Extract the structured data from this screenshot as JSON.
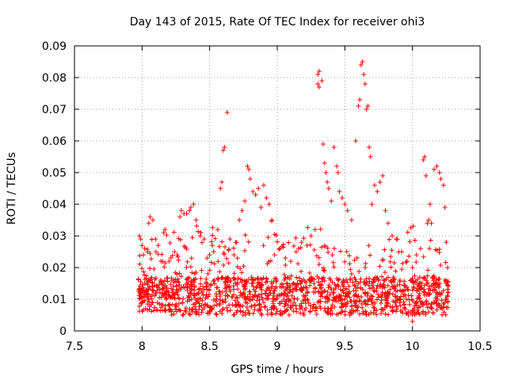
{
  "chart_data": {
    "type": "scatter",
    "title": "Day 143 of 2015, Rate Of TEC Index for receiver ohi3",
    "xlabel": "GPS time / hours",
    "ylabel": "ROTI / TECUs",
    "xlim": [
      7.5,
      10.5
    ],
    "ylim": [
      0,
      0.09
    ],
    "xticks": [
      "7.5",
      "8",
      "8.5",
      "9",
      "9.5",
      "10",
      "10.5"
    ],
    "yticks": [
      "0",
      "0.01",
      "0.02",
      "0.03",
      "0.04",
      "0.05",
      "0.06",
      "0.07",
      "0.08",
      "0.09"
    ],
    "grid": true,
    "marker": "+",
    "color": "#ff0000",
    "series": [
      {
        "name": "ROTI",
        "points": [
          [
            7.98,
            0.03
          ],
          [
            7.99,
            0.029
          ],
          [
            8.0,
            0.027
          ],
          [
            8.01,
            0.024
          ],
          [
            8.02,
            0.026
          ],
          [
            8.04,
            0.025
          ],
          [
            8.05,
            0.034
          ],
          [
            8.06,
            0.036
          ],
          [
            8.08,
            0.035
          ],
          [
            8.1,
            0.029
          ],
          [
            8.12,
            0.027
          ],
          [
            8.14,
            0.022
          ],
          [
            8.16,
            0.031
          ],
          [
            8.17,
            0.032
          ],
          [
            8.2,
            0.022
          ],
          [
            8.24,
            0.025
          ],
          [
            8.26,
            0.024
          ],
          [
            8.28,
            0.036
          ],
          [
            8.29,
            0.038
          ],
          [
            8.31,
            0.037
          ],
          [
            8.33,
            0.037
          ],
          [
            8.35,
            0.038
          ],
          [
            8.36,
            0.039
          ],
          [
            8.38,
            0.04
          ],
          [
            8.4,
            0.035
          ],
          [
            8.43,
            0.03
          ],
          [
            8.46,
            0.029
          ],
          [
            8.48,
            0.023
          ],
          [
            8.5,
            0.024
          ],
          [
            8.53,
            0.025
          ],
          [
            8.56,
            0.032
          ],
          [
            8.58,
            0.045
          ],
          [
            8.59,
            0.047
          ],
          [
            8.6,
            0.057
          ],
          [
            8.61,
            0.058
          ],
          [
            8.63,
            0.069
          ],
          [
            8.65,
            0.029
          ],
          [
            8.68,
            0.024
          ],
          [
            8.7,
            0.028
          ],
          [
            8.72,
            0.035
          ],
          [
            8.74,
            0.038
          ],
          [
            8.76,
            0.041
          ],
          [
            8.78,
            0.052
          ],
          [
            8.79,
            0.051
          ],
          [
            8.8,
            0.048
          ],
          [
            8.82,
            0.044
          ],
          [
            8.84,
            0.043
          ],
          [
            8.86,
            0.045
          ],
          [
            8.88,
            0.039
          ],
          [
            8.9,
            0.046
          ],
          [
            8.92,
            0.042
          ],
          [
            8.94,
            0.04
          ],
          [
            8.96,
            0.035
          ],
          [
            8.98,
            0.024
          ],
          [
            9.02,
            0.026
          ],
          [
            9.06,
            0.023
          ],
          [
            9.1,
            0.022
          ],
          [
            9.14,
            0.025
          ],
          [
            9.18,
            0.028
          ],
          [
            9.22,
            0.027
          ],
          [
            9.25,
            0.03
          ],
          [
            9.28,
            0.032
          ],
          [
            9.3,
            0.081
          ],
          [
            9.31,
            0.082
          ],
          [
            9.3,
            0.078
          ],
          [
            9.31,
            0.077
          ],
          [
            9.33,
            0.079
          ],
          [
            9.34,
            0.059
          ],
          [
            9.35,
            0.053
          ],
          [
            9.36,
            0.05
          ],
          [
            9.37,
            0.047
          ],
          [
            9.38,
            0.045
          ],
          [
            9.4,
            0.041
          ],
          [
            9.42,
            0.058
          ],
          [
            9.44,
            0.052
          ],
          [
            9.45,
            0.05
          ],
          [
            9.46,
            0.044
          ],
          [
            9.48,
            0.042
          ],
          [
            9.5,
            0.04
          ],
          [
            9.52,
            0.038
          ],
          [
            9.55,
            0.035
          ],
          [
            9.58,
            0.06
          ],
          [
            9.6,
            0.071
          ],
          [
            9.61,
            0.073
          ],
          [
            9.62,
            0.084
          ],
          [
            9.63,
            0.085
          ],
          [
            9.64,
            0.081
          ],
          [
            9.65,
            0.078
          ],
          [
            9.66,
            0.07
          ],
          [
            9.67,
            0.071
          ],
          [
            9.68,
            0.058
          ],
          [
            9.69,
            0.055
          ],
          [
            9.7,
            0.04
          ],
          [
            9.72,
            0.046
          ],
          [
            9.74,
            0.044
          ],
          [
            9.76,
            0.047
          ],
          [
            9.78,
            0.049
          ],
          [
            9.8,
            0.038
          ],
          [
            9.82,
            0.034
          ],
          [
            9.85,
            0.03
          ],
          [
            9.88,
            0.029
          ],
          [
            9.92,
            0.025
          ],
          [
            9.96,
            0.022
          ],
          [
            10.0,
            0.02
          ],
          [
            10.03,
            0.024
          ],
          [
            10.06,
            0.026
          ],
          [
            10.08,
            0.054
          ],
          [
            10.09,
            0.055
          ],
          [
            10.1,
            0.049
          ],
          [
            10.11,
            0.034
          ],
          [
            10.12,
            0.035
          ],
          [
            10.13,
            0.04
          ],
          [
            10.14,
            0.034
          ],
          [
            10.16,
            0.051
          ],
          [
            10.18,
            0.052
          ],
          [
            10.2,
            0.05
          ],
          [
            10.21,
            0.048
          ],
          [
            10.23,
            0.046
          ],
          [
            10.24,
            0.039
          ],
          [
            10.25,
            0.028
          ],
          [
            10.26,
            0.02
          ],
          [
            10.0,
            0.003
          ],
          [
            9.97,
            0.005
          ],
          [
            9.88,
            0.008
          ],
          [
            9.8,
            0.012
          ],
          [
            9.7,
            0.015
          ],
          [
            9.6,
            0.011
          ],
          [
            9.5,
            0.01
          ],
          [
            9.4,
            0.013
          ],
          [
            9.3,
            0.009
          ],
          [
            9.2,
            0.01
          ],
          [
            9.1,
            0.008
          ],
          [
            9.0,
            0.011
          ],
          [
            8.9,
            0.009
          ],
          [
            8.8,
            0.01
          ],
          [
            8.7,
            0.008
          ],
          [
            8.6,
            0.007
          ],
          [
            8.5,
            0.006
          ],
          [
            8.4,
            0.009
          ],
          [
            8.3,
            0.005
          ],
          [
            8.2,
            0.011
          ],
          [
            8.1,
            0.012
          ],
          [
            8.05,
            0.01
          ],
          [
            8.0,
            0.009
          ],
          [
            7.99,
            0.013
          ],
          [
            8.02,
            0.015
          ],
          [
            8.08,
            0.014
          ],
          [
            8.15,
            0.013
          ],
          [
            8.22,
            0.016
          ],
          [
            8.35,
            0.012
          ],
          [
            8.45,
            0.014
          ],
          [
            8.55,
            0.011
          ],
          [
            8.65,
            0.013
          ],
          [
            8.75,
            0.012
          ],
          [
            8.85,
            0.014
          ],
          [
            8.95,
            0.012
          ],
          [
            9.05,
            0.01
          ],
          [
            9.15,
            0.015
          ],
          [
            9.25,
            0.017
          ],
          [
            9.35,
            0.019
          ],
          [
            9.45,
            0.016
          ],
          [
            9.55,
            0.018
          ],
          [
            9.65,
            0.02
          ],
          [
            9.75,
            0.016
          ],
          [
            9.85,
            0.014
          ],
          [
            9.95,
            0.013
          ],
          [
            10.05,
            0.015
          ],
          [
            10.15,
            0.017
          ],
          [
            10.2,
            0.012
          ],
          [
            10.25,
            0.01
          ],
          [
            10.22,
            0.007
          ],
          [
            10.12,
            0.006
          ]
        ]
      }
    ]
  }
}
